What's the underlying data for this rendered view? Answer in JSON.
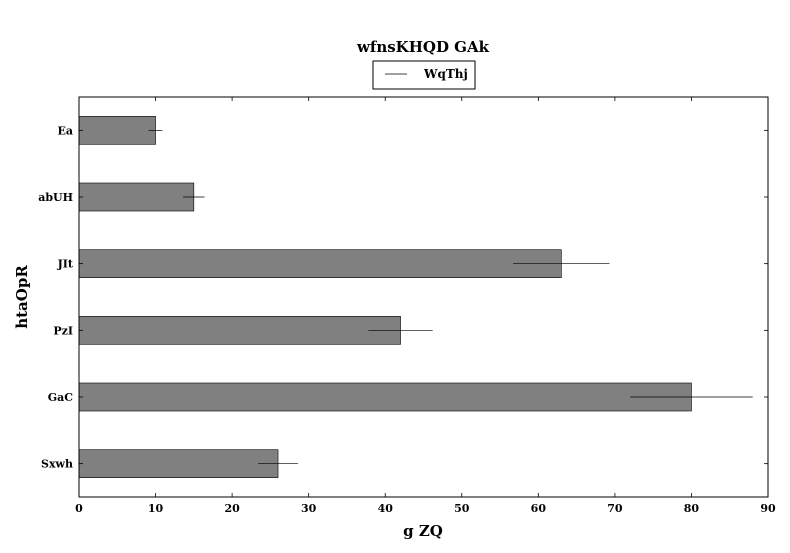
{
  "chart_data": {
    "type": "bar",
    "orientation": "horizontal",
    "title": "wfnsKHQD GAk",
    "xlabel": "g ZQ",
    "ylabel": "htaOpR",
    "categories": [
      "Ea",
      "abUH",
      "JIt",
      "PzI",
      "GaC",
      "Sxwh"
    ],
    "series": [
      {
        "name": "WqThj",
        "values": [
          10,
          15,
          63,
          42,
          80,
          26
        ],
        "errors": [
          0.9,
          1.4,
          6.3,
          4.2,
          8.0,
          2.6
        ]
      }
    ],
    "xlim": [
      0,
      90
    ],
    "xticks": [
      0,
      10,
      20,
      30,
      40,
      50,
      60,
      70,
      80,
      90
    ],
    "grid": false,
    "legend": "top-center",
    "colors": {
      "bar": "#808080",
      "edge": "#000000",
      "error": "#000000"
    }
  }
}
